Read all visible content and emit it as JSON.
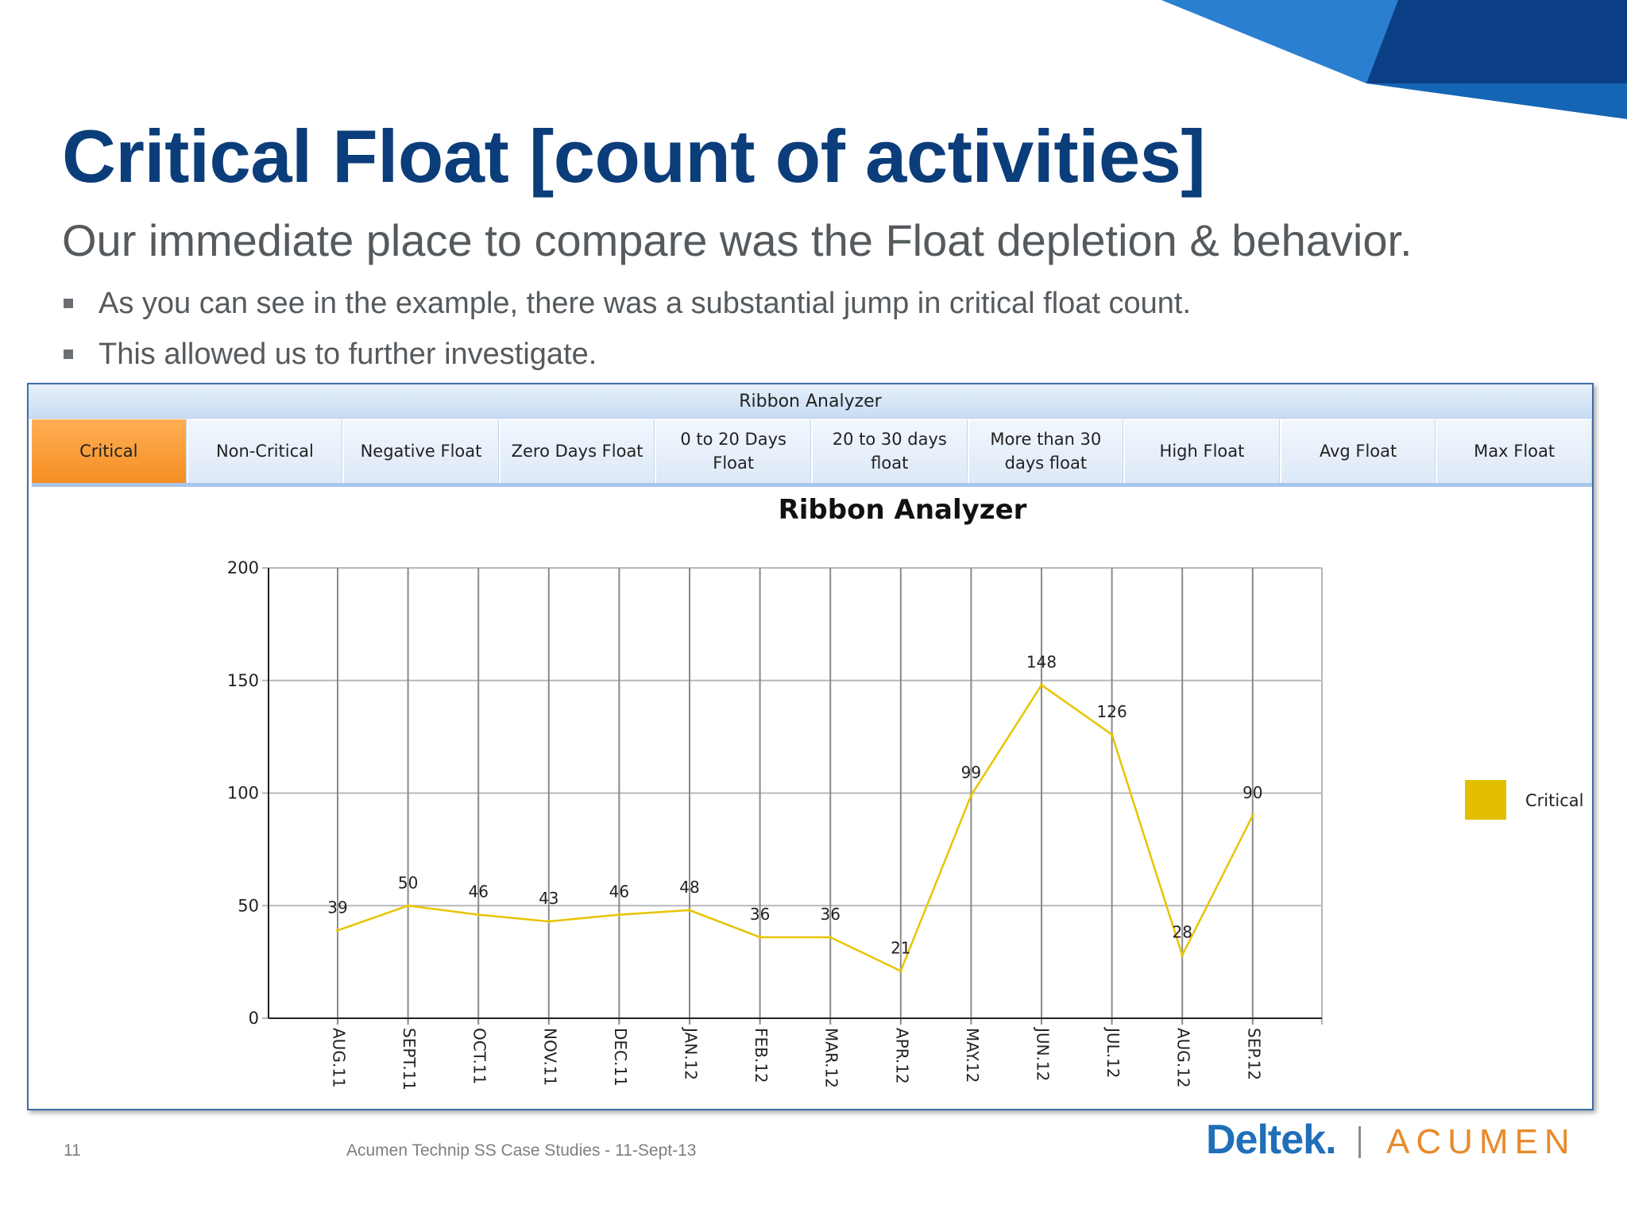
{
  "slide": {
    "title": "Critical Float [count of activities]",
    "subtitle": "Our immediate place to compare was the Float depletion & behavior.",
    "bullets": [
      "As you can see in the example, there was a substantial jump in critical float count.",
      "This allowed us to further investigate."
    ],
    "footer": {
      "page_number": "11",
      "text": "Acumen Technip SS Case Studies - 11-Sept-13",
      "logo_deltek": "Deltek.",
      "logo_acumen": "ACUMEN"
    }
  },
  "app": {
    "window_title": "Ribbon Analyzer",
    "tabs": [
      {
        "label": "Critical",
        "active": true
      },
      {
        "label": "Non-Critical",
        "active": false
      },
      {
        "label": "Negative Float",
        "active": false
      },
      {
        "label": "Zero Days Float",
        "active": false
      },
      {
        "label": "0 to 20 Days Float",
        "active": false
      },
      {
        "label": "20 to 30 days float",
        "active": false
      },
      {
        "label": "More than 30 days float",
        "active": false
      },
      {
        "label": "High Float",
        "active": false
      },
      {
        "label": "Avg Float",
        "active": false
      },
      {
        "label": "Max Float",
        "active": false
      }
    ]
  },
  "colors": {
    "title": "#0b3d7a",
    "active_tab": "#f59a35",
    "series": "#e8c400",
    "legend_swatch": "#e2bf00"
  },
  "chart_data": {
    "type": "line",
    "title": "Ribbon Analyzer",
    "xlabel": "",
    "ylabel": "",
    "ylim": [
      0,
      200
    ],
    "yticks": [
      0,
      50,
      100,
      150,
      200
    ],
    "grid": true,
    "legend_placement": "right",
    "categories": [
      "AUG.11",
      "SEPT.11",
      "OCT.11",
      "NOV.11",
      "DEC.11",
      "JAN.12",
      "FEB.12",
      "MAR.12",
      "APR.12",
      "MAY.12",
      "JUN.12",
      "JUL.12",
      "AUG.12",
      "SEP.12"
    ],
    "series": [
      {
        "name": "Critical",
        "color": "#e8c400",
        "values": [
          39,
          50,
          46,
          43,
          46,
          48,
          36,
          36,
          21,
          99,
          148,
          126,
          28,
          90
        ]
      }
    ]
  }
}
